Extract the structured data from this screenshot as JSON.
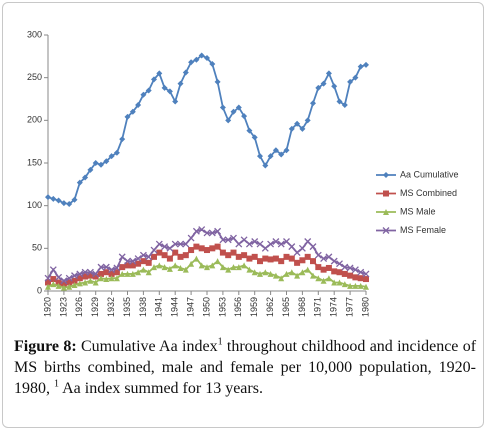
{
  "chart_data": {
    "type": "line",
    "x": [
      1920,
      1921,
      1922,
      1923,
      1924,
      1925,
      1926,
      1927,
      1928,
      1929,
      1930,
      1931,
      1932,
      1933,
      1934,
      1935,
      1936,
      1937,
      1938,
      1939,
      1940,
      1941,
      1942,
      1943,
      1944,
      1945,
      1946,
      1947,
      1948,
      1949,
      1950,
      1951,
      1952,
      1953,
      1954,
      1955,
      1956,
      1957,
      1958,
      1959,
      1960,
      1961,
      1962,
      1963,
      1964,
      1965,
      1966,
      1967,
      1968,
      1969,
      1970,
      1971,
      1972,
      1973,
      1974,
      1975,
      1976,
      1977,
      1978,
      1979,
      1980
    ],
    "xlim": [
      1920,
      1980
    ],
    "xticks": [
      1920,
      1923,
      1926,
      1929,
      1932,
      1935,
      1938,
      1941,
      1944,
      1947,
      1950,
      1953,
      1956,
      1959,
      1962,
      1965,
      1968,
      1971,
      1974,
      1977,
      1980
    ],
    "ylim": [
      0,
      300
    ],
    "yticks": [
      0,
      50,
      100,
      150,
      200,
      250,
      300
    ],
    "legend": "right",
    "series": [
      {
        "name": "Aa Cumulative",
        "color": "#4f81bd",
        "marker": "diamond",
        "values": [
          110,
          108,
          106,
          103,
          102,
          107,
          127,
          133,
          142,
          150,
          148,
          152,
          158,
          162,
          178,
          204,
          210,
          218,
          230,
          235,
          248,
          255,
          238,
          234,
          222,
          243,
          256,
          268,
          271,
          276,
          273,
          266,
          245,
          215,
          200,
          210,
          215,
          205,
          188,
          180,
          158,
          147,
          158,
          165,
          160,
          165,
          190,
          196,
          190,
          200,
          220,
          238,
          243,
          255,
          240,
          222,
          218,
          245,
          250,
          263,
          265
        ]
      },
      {
        "name": "MS Combined",
        "color": "#c0504d",
        "marker": "square",
        "values": [
          10,
          14,
          10,
          8,
          10,
          12,
          15,
          17,
          18,
          17,
          20,
          22,
          20,
          22,
          28,
          30,
          30,
          32,
          35,
          33,
          40,
          45,
          42,
          38,
          45,
          40,
          42,
          48,
          52,
          50,
          48,
          50,
          52,
          45,
          42,
          45,
          40,
          42,
          38,
          40,
          35,
          38,
          37,
          38,
          35,
          40,
          38,
          33,
          36,
          40,
          35,
          28,
          25,
          27,
          23,
          22,
          20,
          18,
          16,
          15,
          14
        ]
      },
      {
        "name": "MS Male",
        "color": "#9bbb59",
        "marker": "triangle",
        "values": [
          5,
          8,
          6,
          4,
          5,
          7,
          9,
          10,
          12,
          10,
          15,
          14,
          15,
          15,
          20,
          20,
          20,
          22,
          25,
          22,
          28,
          30,
          28,
          26,
          30,
          27,
          25,
          32,
          38,
          30,
          28,
          30,
          35,
          28,
          25,
          28,
          28,
          30,
          25,
          22,
          20,
          22,
          20,
          18,
          15,
          20,
          22,
          18,
          22,
          25,
          18,
          15,
          12,
          15,
          10,
          10,
          8,
          6,
          6,
          6,
          5
        ]
      },
      {
        "name": "MS Female",
        "color": "#8064a2",
        "marker": "x",
        "values": [
          15,
          25,
          16,
          12,
          15,
          18,
          20,
          22,
          22,
          20,
          28,
          28,
          25,
          27,
          40,
          35,
          35,
          38,
          42,
          40,
          48,
          55,
          52,
          50,
          55,
          55,
          55,
          62,
          70,
          72,
          68,
          68,
          70,
          60,
          60,
          62,
          55,
          60,
          55,
          58,
          55,
          50,
          55,
          58,
          55,
          58,
          52,
          45,
          50,
          58,
          52,
          42,
          38,
          40,
          35,
          32,
          28,
          27,
          25,
          22,
          20
        ]
      }
    ]
  },
  "caption": {
    "label": "Figure 8:",
    "parts": [
      "Cumulative Aa index",
      "1",
      " throughout childhood and incidence of MS births combined, male and female per 10,000 population, 1920-1980, ",
      "1",
      " Aa index summed for 13 years."
    ]
  }
}
